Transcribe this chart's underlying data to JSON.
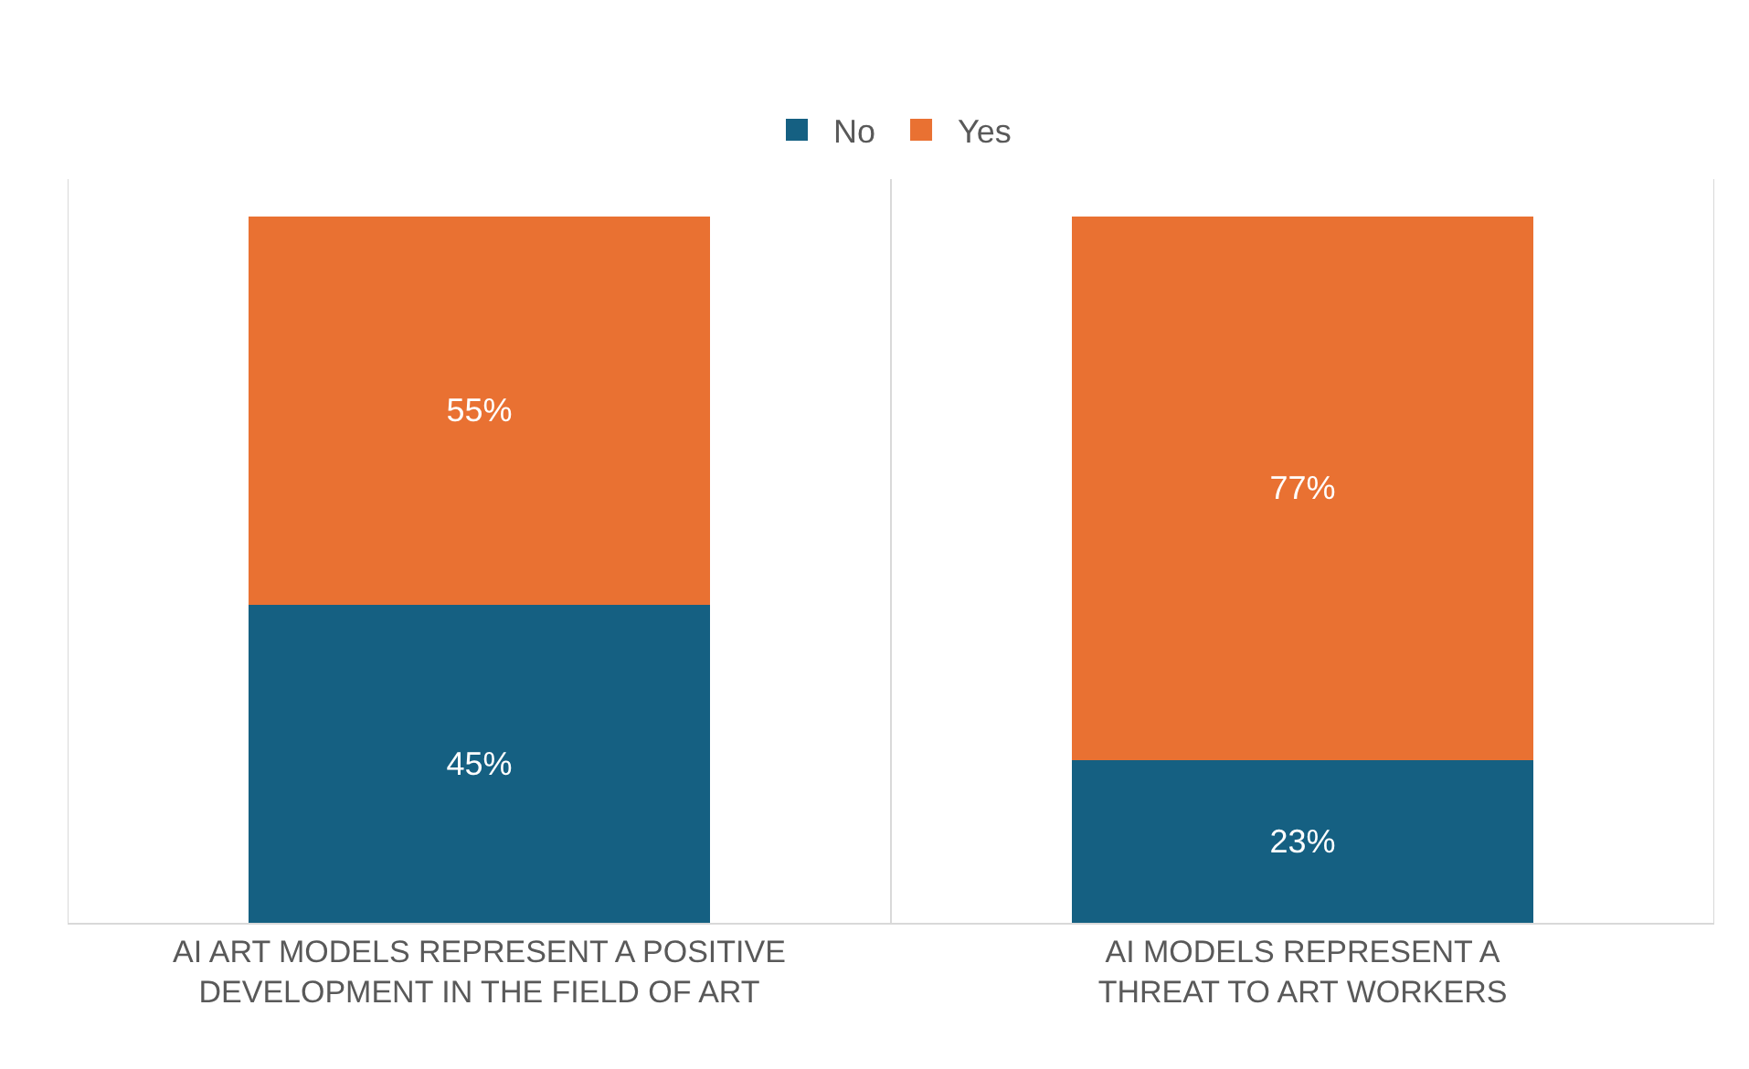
{
  "chart_data": {
    "type": "bar",
    "stacked": true,
    "categories": [
      "AI ART MODELS REPRESENT A POSITIVE DEVELOPMENT IN THE FIELD OF ART",
      "AI MODELS REPRESENT A THREAT TO ART WORKERS"
    ],
    "series": [
      {
        "name": "No",
        "color": "#156082",
        "values": [
          45,
          23
        ],
        "value_labels": [
          "45%",
          "23%"
        ]
      },
      {
        "name": "Yes",
        "color": "#e97132",
        "values": [
          55,
          77
        ],
        "value_labels": [
          "55%",
          "77%"
        ]
      }
    ],
    "legend": "top",
    "grid": "x"
  }
}
